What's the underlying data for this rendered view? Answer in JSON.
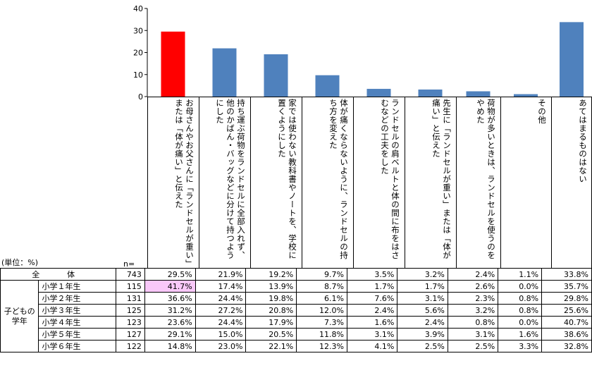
{
  "chart_data": {
    "type": "bar",
    "unit_label": "(単位：%)",
    "n_label": "n=",
    "y_ticks": [
      0,
      10,
      20,
      30,
      40
    ],
    "ylim": [
      0,
      40
    ],
    "highlight_color": "#ff0000",
    "bar_color": "#4f81bd",
    "categories": [
      "お母さんやお父さんに「ランドセルが重い」または「体が痛い」と伝えた",
      "持ち運ぶ荷物をランドセルに全部入れず、他のかばん・バッグなどに分けて持つようにした",
      "家では使わない教科書やノートを、学校に置くようにした",
      "体が痛くならないように、ランドセルの持ち方を変えた",
      "ランドセルの肩ベルトと体の間に布をはさむなどの工夫をした",
      "先生に「ランドセルが重い」または「体が痛い」と伝えた",
      "荷物が多いときは、ランドセルを使うのをやめた",
      "その他",
      "あてはまるものはない"
    ],
    "values": [
      29.5,
      21.9,
      19.2,
      9.7,
      3.5,
      3.2,
      2.4,
      1.1,
      33.8
    ],
    "highlight_index": 0,
    "table": {
      "group_label": "子どもの学年",
      "rows": [
        {
          "label": "全　体",
          "n": "743",
          "cells": [
            "29.5%",
            "21.9%",
            "19.2%",
            "9.7%",
            "3.5%",
            "3.2%",
            "2.4%",
            "1.1%",
            "33.8%"
          ]
        },
        {
          "label": "小学１年生",
          "n": "115",
          "cells": [
            "41.7%",
            "17.4%",
            "13.9%",
            "8.7%",
            "1.7%",
            "1.7%",
            "2.6%",
            "0.0%",
            "35.7%"
          ]
        },
        {
          "label": "小学２年生",
          "n": "131",
          "cells": [
            "36.6%",
            "24.4%",
            "19.8%",
            "6.1%",
            "7.6%",
            "3.1%",
            "2.3%",
            "0.8%",
            "29.8%"
          ]
        },
        {
          "label": "小学３年生",
          "n": "125",
          "cells": [
            "31.2%",
            "27.2%",
            "20.8%",
            "12.0%",
            "2.4%",
            "5.6%",
            "3.2%",
            "0.8%",
            "25.6%"
          ]
        },
        {
          "label": "小学４年生",
          "n": "123",
          "cells": [
            "23.6%",
            "24.4%",
            "17.9%",
            "7.3%",
            "1.6%",
            "2.4%",
            "0.8%",
            "0.0%",
            "40.7%"
          ]
        },
        {
          "label": "小学５年生",
          "n": "127",
          "cells": [
            "29.1%",
            "15.0%",
            "20.5%",
            "11.8%",
            "3.1%",
            "3.9%",
            "3.1%",
            "1.6%",
            "38.6%"
          ]
        },
        {
          "label": "小学６年生",
          "n": "122",
          "cells": [
            "14.8%",
            "23.0%",
            "22.1%",
            "12.3%",
            "4.1%",
            "2.5%",
            "2.5%",
            "3.3%",
            "32.8%"
          ]
        }
      ],
      "highlight_cell": {
        "row": 1,
        "col": 0
      }
    }
  }
}
